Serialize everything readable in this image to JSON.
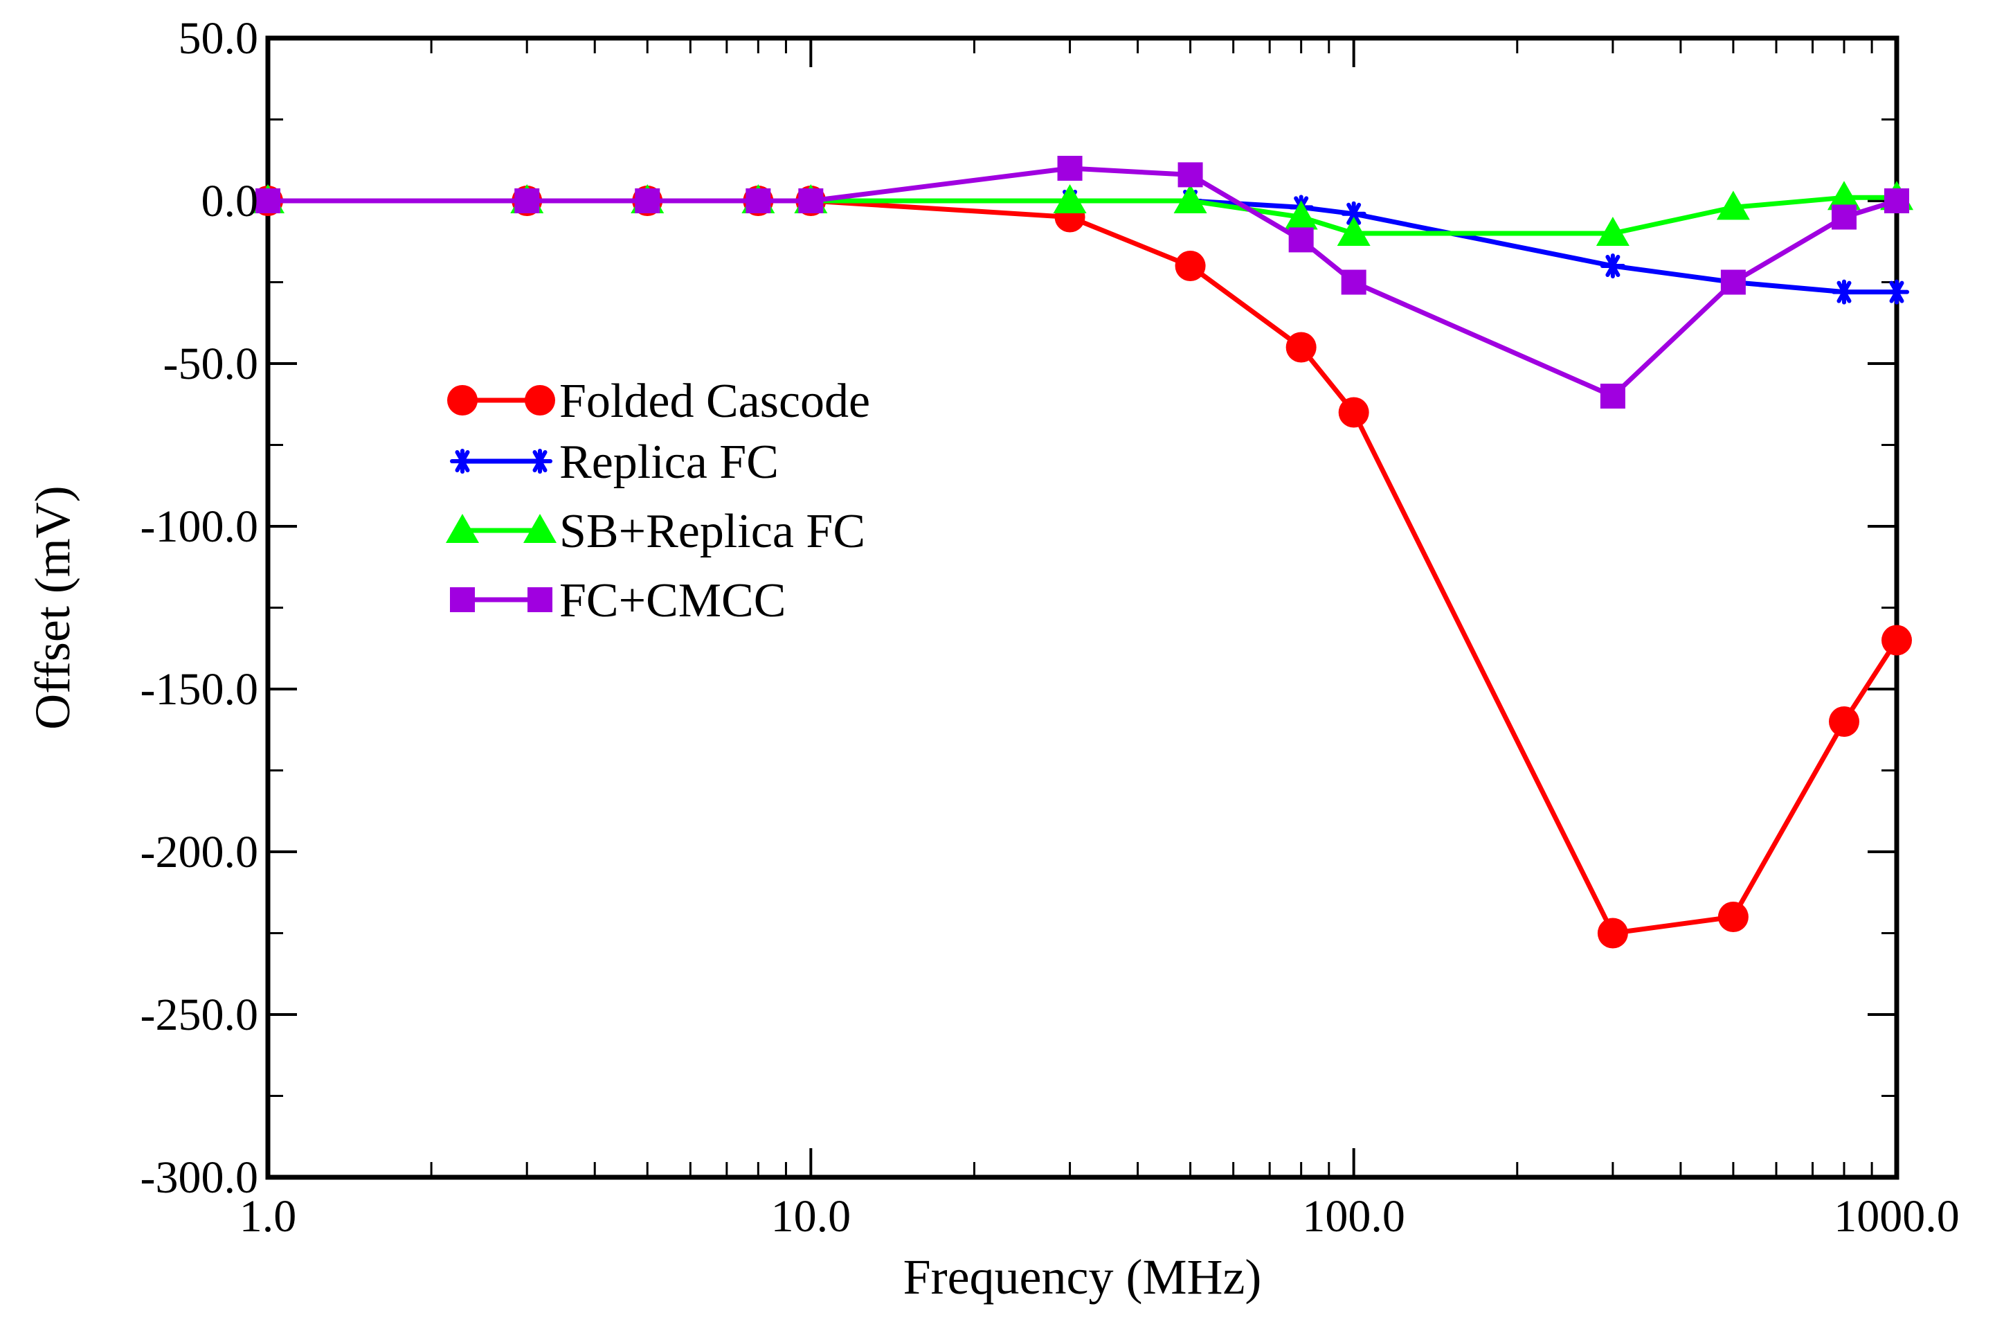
{
  "chart_data": {
    "type": "line",
    "title": "",
    "xlabel": "Frequency (MHz)",
    "ylabel": "Offset (mV)",
    "xscale": "log",
    "xlim": [
      1,
      1000
    ],
    "ylim": [
      -300,
      50
    ],
    "xticks": [
      1,
      10,
      100,
      1000
    ],
    "xtick_labels": [
      "1.0",
      "10.0",
      "100.0",
      "1000.0"
    ],
    "yticks": [
      50,
      0,
      -50,
      -100,
      -150,
      -200,
      -250,
      -300
    ],
    "ytick_labels": [
      "50.0",
      "0.0",
      "-50.0",
      "-100.0",
      "-150.0",
      "-200.0",
      "-250.0",
      "-300.0"
    ],
    "grid": false,
    "legend_position": "center-left",
    "series": [
      {
        "name": "Folded Cascode",
        "color": "#ff0000",
        "marker": "circle",
        "x": [
          1,
          3,
          5,
          8,
          10,
          30,
          50,
          80,
          100,
          300,
          500,
          800,
          1000
        ],
        "y": [
          0,
          0,
          0,
          0,
          0,
          -5,
          -20,
          -45,
          -65,
          -225,
          -220,
          -160,
          -135
        ]
      },
      {
        "name": "Replica FC",
        "color": "#0000ff",
        "marker": "star",
        "x": [
          1,
          3,
          5,
          8,
          10,
          30,
          50,
          80,
          100,
          300,
          500,
          800,
          1000
        ],
        "y": [
          0,
          0,
          0,
          0,
          0,
          0,
          0,
          -2,
          -4,
          -20,
          -25,
          -28,
          -28
        ]
      },
      {
        "name": "SB+Replica FC",
        "color": "#00ff00",
        "marker": "triangle",
        "x": [
          1,
          3,
          5,
          8,
          10,
          30,
          50,
          80,
          100,
          300,
          500,
          800,
          1000
        ],
        "y": [
          0,
          0,
          0,
          0,
          0,
          0,
          0,
          -5,
          -10,
          -10,
          -2,
          1,
          1
        ]
      },
      {
        "name": "FC+CMCC",
        "color": "#a000e0",
        "marker": "square",
        "x": [
          1,
          3,
          5,
          8,
          10,
          30,
          50,
          80,
          100,
          300,
          500,
          800,
          1000
        ],
        "y": [
          0,
          0,
          0,
          0,
          0,
          10,
          8,
          -12,
          -25,
          -60,
          -25,
          -5,
          0
        ]
      }
    ]
  }
}
